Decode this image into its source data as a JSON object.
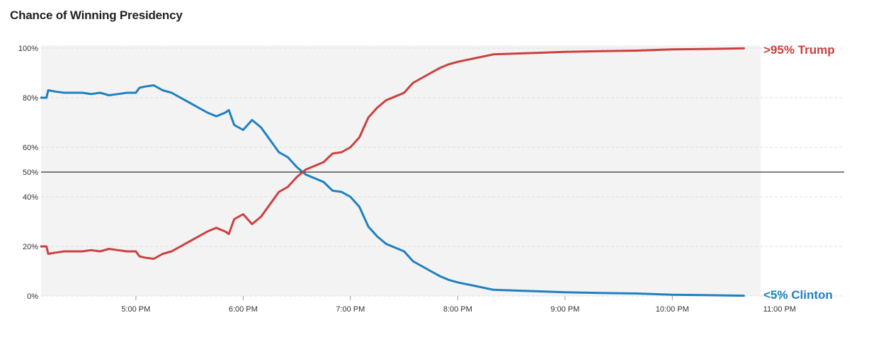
{
  "chart_data": {
    "type": "line",
    "title": "Chance of Winning Presidency",
    "xlabel": "",
    "ylabel": "",
    "x_ticks": [
      "5:00 PM",
      "6:00 PM",
      "7:00 PM",
      "8:00 PM",
      "9:00 PM",
      "10:00 PM",
      "11:00 PM"
    ],
    "x_range": [
      "4:07 PM",
      "11:00 PM"
    ],
    "y_ticks": [
      "0%",
      "20%",
      "40%",
      "50%",
      "60%",
      "80%",
      "100%"
    ],
    "y_tick_values": [
      0,
      20,
      40,
      50,
      60,
      80,
      100
    ],
    "ylim": [
      0,
      100
    ],
    "grid": true,
    "reference_line": 50,
    "series": [
      {
        "name": "Clinton",
        "end_label": "<5% Clinton",
        "color": "#1f80c0",
        "points": [
          [
            "4:07 PM",
            80
          ],
          [
            "4:10 PM",
            80
          ],
          [
            "4:11 PM",
            83
          ],
          [
            "4:15 PM",
            82.5
          ],
          [
            "4:20 PM",
            82
          ],
          [
            "4:25 PM",
            82
          ],
          [
            "4:30 PM",
            82
          ],
          [
            "4:35 PM",
            81.5
          ],
          [
            "4:40 PM",
            82
          ],
          [
            "4:45 PM",
            81
          ],
          [
            "4:50 PM",
            81.5
          ],
          [
            "4:55 PM",
            82
          ],
          [
            "5:00 PM",
            82
          ],
          [
            "5:02 PM",
            84
          ],
          [
            "5:05 PM",
            84.5
          ],
          [
            "5:10 PM",
            85
          ],
          [
            "5:15 PM",
            83
          ],
          [
            "5:20 PM",
            82
          ],
          [
            "5:25 PM",
            80
          ],
          [
            "5:30 PM",
            78
          ],
          [
            "5:35 PM",
            76
          ],
          [
            "5:40 PM",
            74
          ],
          [
            "5:45 PM",
            72.5
          ],
          [
            "5:50 PM",
            74
          ],
          [
            "5:52 PM",
            75
          ],
          [
            "5:55 PM",
            69
          ],
          [
            "6:00 PM",
            67
          ],
          [
            "6:05 PM",
            71
          ],
          [
            "6:10 PM",
            68
          ],
          [
            "6:15 PM",
            63
          ],
          [
            "6:20 PM",
            58
          ],
          [
            "6:25 PM",
            56
          ],
          [
            "6:30 PM",
            52
          ],
          [
            "6:35 PM",
            49
          ],
          [
            "6:40 PM",
            47.5
          ],
          [
            "6:45 PM",
            46
          ],
          [
            "6:50 PM",
            42.5
          ],
          [
            "6:55 PM",
            42
          ],
          [
            "7:00 PM",
            40
          ],
          [
            "7:05 PM",
            36
          ],
          [
            "7:10 PM",
            28
          ],
          [
            "7:15 PM",
            24
          ],
          [
            "7:20 PM",
            21
          ],
          [
            "7:25 PM",
            19.5
          ],
          [
            "7:30 PM",
            18
          ],
          [
            "7:35 PM",
            14
          ],
          [
            "7:40 PM",
            12
          ],
          [
            "7:45 PM",
            10
          ],
          [
            "7:50 PM",
            8
          ],
          [
            "7:55 PM",
            6.5
          ],
          [
            "8:00 PM",
            5.5
          ],
          [
            "8:10 PM",
            4
          ],
          [
            "8:20 PM",
            2.5
          ],
          [
            "8:40 PM",
            2
          ],
          [
            "9:00 PM",
            1.5
          ],
          [
            "9:20 PM",
            1.2
          ],
          [
            "9:40 PM",
            1
          ],
          [
            "10:00 PM",
            0.5
          ],
          [
            "10:20 PM",
            0.3
          ],
          [
            "10:40 PM",
            0.1
          ]
        ]
      },
      {
        "name": "Trump",
        "end_label": ">95% Trump",
        "color": "#cc3f3f",
        "points": [
          [
            "4:07 PM",
            20
          ],
          [
            "4:10 PM",
            20
          ],
          [
            "4:11 PM",
            17
          ],
          [
            "4:15 PM",
            17.5
          ],
          [
            "4:20 PM",
            18
          ],
          [
            "4:25 PM",
            18
          ],
          [
            "4:30 PM",
            18
          ],
          [
            "4:35 PM",
            18.5
          ],
          [
            "4:40 PM",
            18
          ],
          [
            "4:45 PM",
            19
          ],
          [
            "4:50 PM",
            18.5
          ],
          [
            "4:55 PM",
            18
          ],
          [
            "5:00 PM",
            18
          ],
          [
            "5:02 PM",
            16
          ],
          [
            "5:05 PM",
            15.5
          ],
          [
            "5:10 PM",
            15
          ],
          [
            "5:15 PM",
            17
          ],
          [
            "5:20 PM",
            18
          ],
          [
            "5:25 PM",
            20
          ],
          [
            "5:30 PM",
            22
          ],
          [
            "5:35 PM",
            24
          ],
          [
            "5:40 PM",
            26
          ],
          [
            "5:45 PM",
            27.5
          ],
          [
            "5:50 PM",
            26
          ],
          [
            "5:52 PM",
            25
          ],
          [
            "5:55 PM",
            31
          ],
          [
            "6:00 PM",
            33
          ],
          [
            "6:05 PM",
            29
          ],
          [
            "6:10 PM",
            32
          ],
          [
            "6:15 PM",
            37
          ],
          [
            "6:20 PM",
            42
          ],
          [
            "6:25 PM",
            44
          ],
          [
            "6:30 PM",
            48
          ],
          [
            "6:35 PM",
            51
          ],
          [
            "6:40 PM",
            52.5
          ],
          [
            "6:45 PM",
            54
          ],
          [
            "6:50 PM",
            57.5
          ],
          [
            "6:55 PM",
            58
          ],
          [
            "7:00 PM",
            60
          ],
          [
            "7:05 PM",
            64
          ],
          [
            "7:10 PM",
            72
          ],
          [
            "7:15 PM",
            76
          ],
          [
            "7:20 PM",
            79
          ],
          [
            "7:25 PM",
            80.5
          ],
          [
            "7:30 PM",
            82
          ],
          [
            "7:35 PM",
            86
          ],
          [
            "7:40 PM",
            88
          ],
          [
            "7:45 PM",
            90
          ],
          [
            "7:50 PM",
            92
          ],
          [
            "7:55 PM",
            93.5
          ],
          [
            "8:00 PM",
            94.5
          ],
          [
            "8:10 PM",
            96
          ],
          [
            "8:20 PM",
            97.5
          ],
          [
            "8:40 PM",
            98
          ],
          [
            "9:00 PM",
            98.5
          ],
          [
            "9:20 PM",
            98.8
          ],
          [
            "9:40 PM",
            99
          ],
          [
            "10:00 PM",
            99.5
          ],
          [
            "10:20 PM",
            99.7
          ],
          [
            "10:40 PM",
            99.9
          ]
        ]
      }
    ]
  },
  "style": {
    "plot_bg": "#f3f3f3",
    "grid_color": "#dddddd",
    "reference_line_color": "#000000"
  }
}
